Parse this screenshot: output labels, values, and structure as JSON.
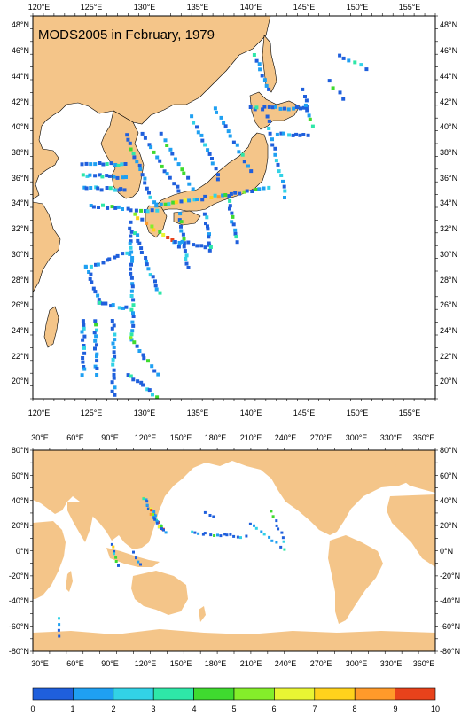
{
  "title": "MODS2005 in February, 1979",
  "colors": {
    "land": "#F4C589",
    "ocean": "#FFFFFF",
    "frame": "#000000",
    "colorbar": [
      "#1f5fdc",
      "#1fa0f2",
      "#32d2e6",
      "#2ee7a8",
      "#3fda2f",
      "#84ee2a",
      "#e9f533",
      "#ffd21c",
      "#ff9a2a",
      "#e8421b"
    ]
  },
  "regional_map": {
    "lon_labels": [
      "120°E",
      "125°E",
      "130°E",
      "135°E",
      "140°E",
      "145°E",
      "150°E",
      "155°E"
    ],
    "lat_labels": [
      "48°N",
      "46°N",
      "44°N",
      "42°N",
      "40°N",
      "38°N",
      "36°N",
      "34°N",
      "32°N",
      "30°N",
      "28°N",
      "26°N",
      "24°N",
      "22°N",
      "20°N"
    ]
  },
  "global_map": {
    "lon_labels": [
      "30°E",
      "60°E",
      "90°E",
      "120°E",
      "150°E",
      "180°E",
      "210°E",
      "240°E",
      "270°E",
      "300°E",
      "330°E",
      "360°E"
    ],
    "lat_labels": [
      "80°N",
      "60°N",
      "40°N",
      "20°N",
      "0°N",
      "-20°N",
      "-40°N",
      "-60°N",
      "-80°N"
    ]
  },
  "colorbar": {
    "ticks": [
      "0",
      "1",
      "2",
      "3",
      "4",
      "5",
      "6",
      "7",
      "8",
      "9",
      "10"
    ]
  }
}
